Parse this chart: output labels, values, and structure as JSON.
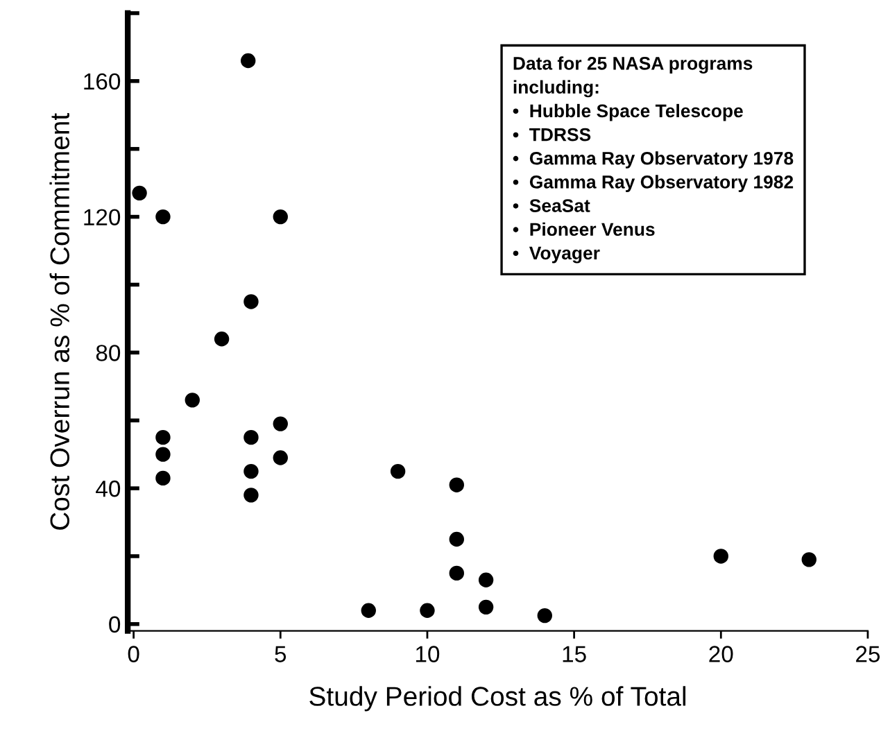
{
  "chart_data": {
    "type": "scatter",
    "xlabel": "Study Period Cost as % of Total",
    "ylabel": "Cost Overrun as % of Commitment",
    "x": [
      0.2,
      1,
      5,
      3.9,
      4,
      3,
      2,
      1,
      1,
      1,
      4,
      4,
      4,
      5,
      5,
      9,
      11,
      11,
      11,
      12,
      12,
      10,
      8,
      14,
      20,
      23
    ],
    "series": [
      {
        "color": "#000000",
        "values": [
          127,
          120,
          120,
          166,
          95,
          84,
          66,
          55,
          50,
          43,
          55,
          45,
          38,
          59,
          49,
          45,
          41,
          25,
          15,
          13,
          5,
          4,
          4,
          2.5,
          20,
          19
        ]
      }
    ],
    "marker": "circle",
    "xlim": [
      -0.2,
      25
    ],
    "ylim": [
      -2,
      180
    ],
    "xticks": [
      0,
      5,
      10,
      15,
      20,
      25
    ],
    "yticks": [
      0,
      {
        "value": 20,
        "label": null
      },
      40,
      {
        "value": 60,
        "label": null
      },
      80,
      {
        "value": 100,
        "label": null
      },
      120,
      {
        "value": 140,
        "label": null
      },
      160,
      {
        "value": 180,
        "label": null
      }
    ],
    "grid": false,
    "legend": false,
    "annotations": [
      "Data for 25 NASA programs\nincluding:\n•  Hubble Space Telescope\n•  TDRSS\n•  Gamma Ray Observatory 1978\n•  Gamma Ray Observatory 1982\n•  SeaSat\n•  Pioneer Venus\n•  Voyager"
    ]
  }
}
